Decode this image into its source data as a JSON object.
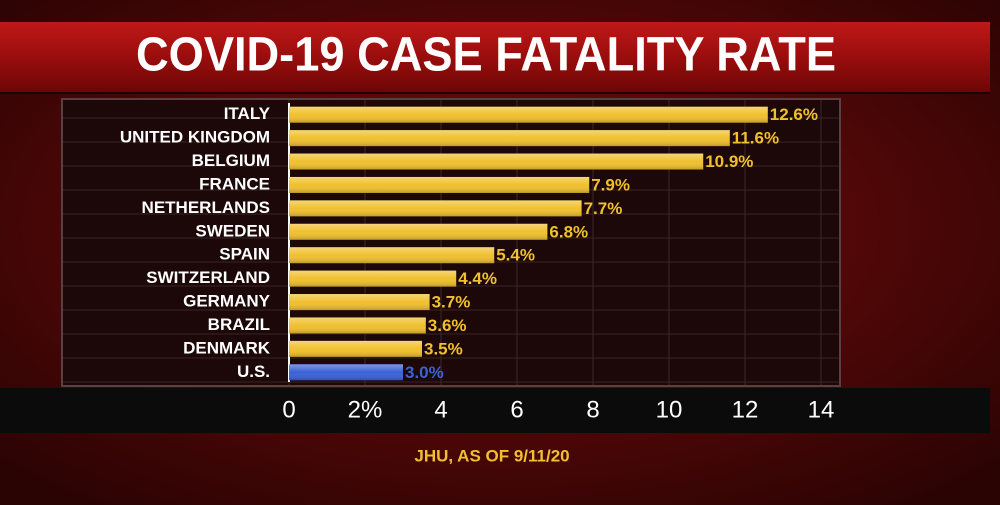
{
  "chart_data": {
    "type": "bar",
    "orientation": "horizontal",
    "title": "COVID-19 CASE FATALITY RATE",
    "source": "JHU, AS OF 9/11/20",
    "categories": [
      "ITALY",
      "UNITED KINGDOM",
      "BELGIUM",
      "FRANCE",
      "NETHERLANDS",
      "SWEDEN",
      "SPAIN",
      "SWITZERLAND",
      "GERMANY",
      "BRAZIL",
      "DENMARK",
      "U.S."
    ],
    "values": [
      12.6,
      11.6,
      10.9,
      7.9,
      7.7,
      6.8,
      5.4,
      4.4,
      3.7,
      3.6,
      3.5,
      3.0
    ],
    "value_labels": [
      "12.6%",
      "11.6%",
      "10.9%",
      "7.9%",
      "7.7%",
      "6.8%",
      "5.4%",
      "4.4%",
      "3.7%",
      "3.6%",
      "3.5%",
      "3.0%"
    ],
    "colors": [
      "#f0c02e",
      "#f0c02e",
      "#f0c02e",
      "#f0c02e",
      "#f0c02e",
      "#f0c02e",
      "#f0c02e",
      "#f0c02e",
      "#f0c02e",
      "#f0c02e",
      "#f0c02e",
      "#3b62d6"
    ],
    "xlim": [
      0,
      14
    ],
    "xticks": [
      0,
      {
        "value": 2,
        "label": "2%"
      },
      4,
      6,
      8,
      10,
      12,
      14
    ],
    "grid": true
  }
}
